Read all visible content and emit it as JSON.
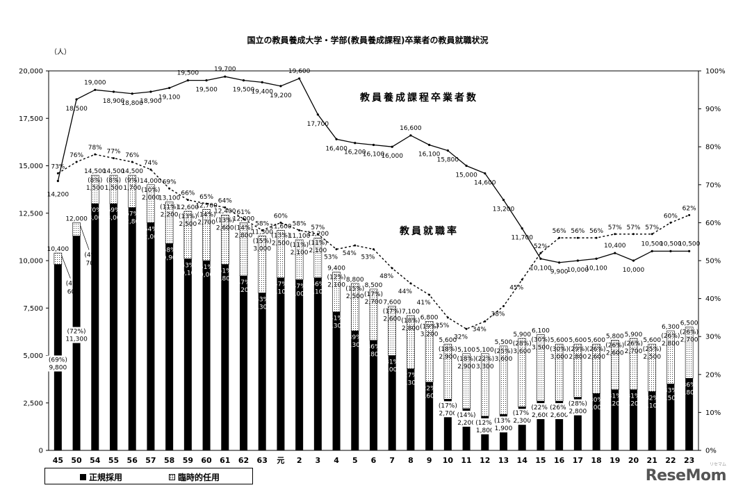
{
  "chart_data": {
    "type": "bar",
    "title": "国立の教員養成大学・学部(教員養成課程)卒業者の教員就職状況",
    "left_axis_unit": "（人）",
    "ylim": [
      0,
      20000
    ],
    "y2lim": [
      0,
      100
    ],
    "y_ticks": [
      "0",
      "2,500",
      "5,000",
      "7,500",
      "10,000",
      "12,500",
      "15,000",
      "17,500",
      "20,000"
    ],
    "y2_ticks": [
      "0%",
      "10%",
      "20%",
      "30%",
      "40%",
      "50%",
      "60%",
      "70%",
      "80%",
      "90%",
      "100%"
    ],
    "categories": [
      "45",
      "50",
      "54",
      "55",
      "56",
      "57",
      "58",
      "59",
      "60",
      "61",
      "62",
      "63",
      "元",
      "2",
      "3",
      "4",
      "5",
      "6",
      "7",
      "8",
      "9",
      "10",
      "11",
      "12",
      "13",
      "14",
      "15",
      "16",
      "17",
      "18",
      "19",
      "20",
      "21",
      "22",
      "23"
    ],
    "series": [
      {
        "name": "正規採用",
        "values": [
          9800,
          11300,
          13000,
          13000,
          12800,
          12000,
          10900,
          10100,
          10000,
          9800,
          9200,
          8300,
          9100,
          9000,
          9100,
          7300,
          6300,
          5800,
          5000,
          4300,
          3600,
          2700,
          2200,
          1800,
          1900,
          2300,
          2600,
          2600,
          2800,
          3000,
          3200,
          3200,
          3100,
          3500,
          3800
        ],
        "pct": [
          "(69%)",
          "(72%)",
          "(70%)",
          "(69%)",
          "(67%)",
          "(64%)",
          "(58%)",
          "(53%)",
          "(51%)",
          "(51%)",
          "(47%)",
          "(43%)",
          "(47%)",
          "(47%)",
          "(46%)",
          "(41%)",
          "(39%)",
          "(36%)",
          "(31%)",
          "(27%)",
          "(22%)",
          "(17%)",
          "(14%)",
          "(12%)",
          "(13%)",
          "(17%)",
          "(22%)",
          "(26%)",
          "(28%)",
          "(30%)",
          "(31%)",
          "(31%)",
          "(32%)",
          "(33%)",
          "(36%)"
        ]
      },
      {
        "name": "臨時的任用",
        "values": [
          600,
          700,
          1500,
          1500,
          1700,
          2000,
          2200,
          2500,
          2700,
          2600,
          2800,
          3000,
          2500,
          2100,
          2100,
          2100,
          2500,
          2700,
          2600,
          2800,
          3200,
          2900,
          2900,
          3300,
          3600,
          3600,
          3500,
          3000,
          2800,
          2600,
          2600,
          2700,
          2500,
          2800,
          2700
        ],
        "pct": [
          "(4%)",
          "(4%)",
          "(8%)",
          "(8%)",
          "(9%)",
          "(10%)",
          "(11%)",
          "(13%)",
          "(14%)",
          "(13%)",
          "(14%)",
          "(15%)",
          "(13%)",
          "(11%)",
          "(11%)",
          "(12%)",
          "(15%)",
          "(17%)",
          "(17%)",
          "(18%)",
          "(19%)",
          "(18%)",
          "(18%)",
          "(22%)",
          "(25%)",
          "(28%)",
          "(30%)",
          "(30%)",
          "(29%)",
          "(26%)",
          "(26%)",
          "(26%)",
          "(25%)",
          "(26%)",
          "(26%)"
        ]
      }
    ],
    "totals": [
      10400,
      12000,
      14500,
      14500,
      14500,
      14000,
      13100,
      12600,
      12700,
      12400,
      12000,
      11300,
      11600,
      11100,
      11200,
      9400,
      8800,
      8500,
      7600,
      7100,
      6800,
      5600,
      5100,
      5100,
      5500,
      5900,
      6100,
      5600,
      5600,
      5600,
      5800,
      5900,
      5600,
      6300,
      6500
    ],
    "graduates": {
      "name": "教員養成課程卒業者数",
      "values": [
        14200,
        18500,
        19000,
        18900,
        18800,
        18900,
        19100,
        19500,
        19500,
        19700,
        19500,
        19400,
        19200,
        19600,
        17700,
        16400,
        16200,
        16100,
        16000,
        16600,
        16100,
        15800,
        15000,
        14600,
        13200,
        11700,
        10100,
        9900,
        10000,
        10100,
        10400,
        10000,
        10500,
        10500,
        10500
      ]
    },
    "employment_rate": {
      "name": "教員就職率",
      "values": [
        73,
        76,
        78,
        77,
        76,
        74,
        69,
        66,
        65,
        64,
        61,
        58,
        60,
        58,
        57,
        53,
        54,
        53,
        48,
        44,
        41,
        35,
        32,
        34,
        38,
        45,
        52,
        56,
        56,
        56,
        57,
        57,
        57,
        60,
        62
      ]
    },
    "legend": [
      "正規採用",
      "臨時的任用"
    ]
  },
  "logo": {
    "text": "ReseMom",
    "sub": "リセマム"
  }
}
